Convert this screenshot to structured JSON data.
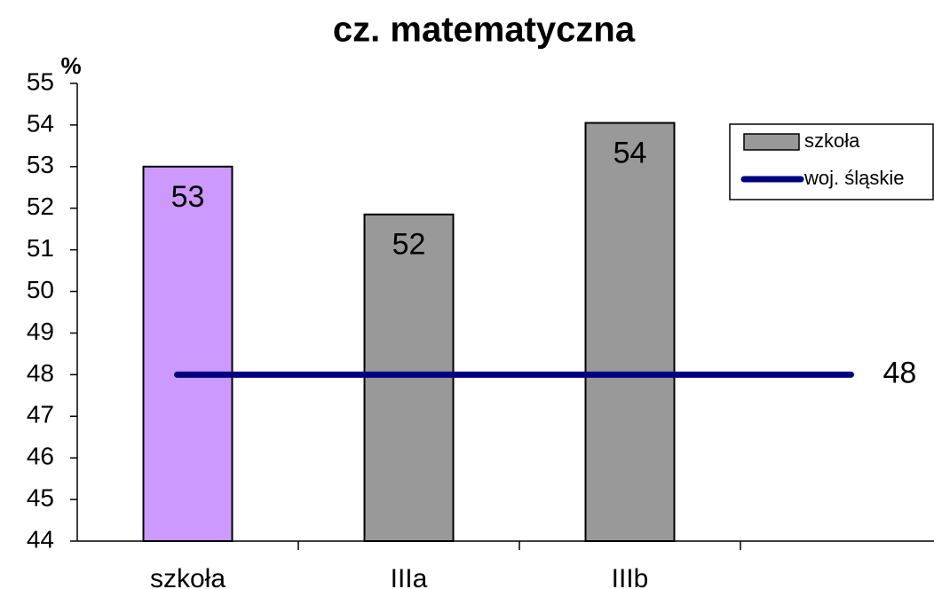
{
  "chart_data": {
    "type": "bar",
    "title": "cz. matematyczna",
    "ylabel": "%",
    "categories": [
      "szkoła",
      "IIIa",
      "IIIb",
      null
    ],
    "series": [
      {
        "name": "szkoła",
        "type": "bar",
        "color": "#999999",
        "colors": [
          "#cc99ff",
          "#999999",
          "#999999",
          null
        ],
        "values": [
          53,
          51.85,
          54.05,
          null
        ],
        "value_labels": [
          "53",
          "52",
          "54",
          null
        ]
      },
      {
        "name": "woj. śląskie",
        "type": "line",
        "color": "#000080",
        "values": [
          48,
          48,
          48,
          48
        ]
      }
    ],
    "ylim": [
      44,
      55
    ],
    "yticks": [
      44,
      45,
      46,
      47,
      48,
      49,
      50,
      51,
      52,
      53,
      54,
      55
    ],
    "grid": false,
    "legend": "upper right"
  }
}
